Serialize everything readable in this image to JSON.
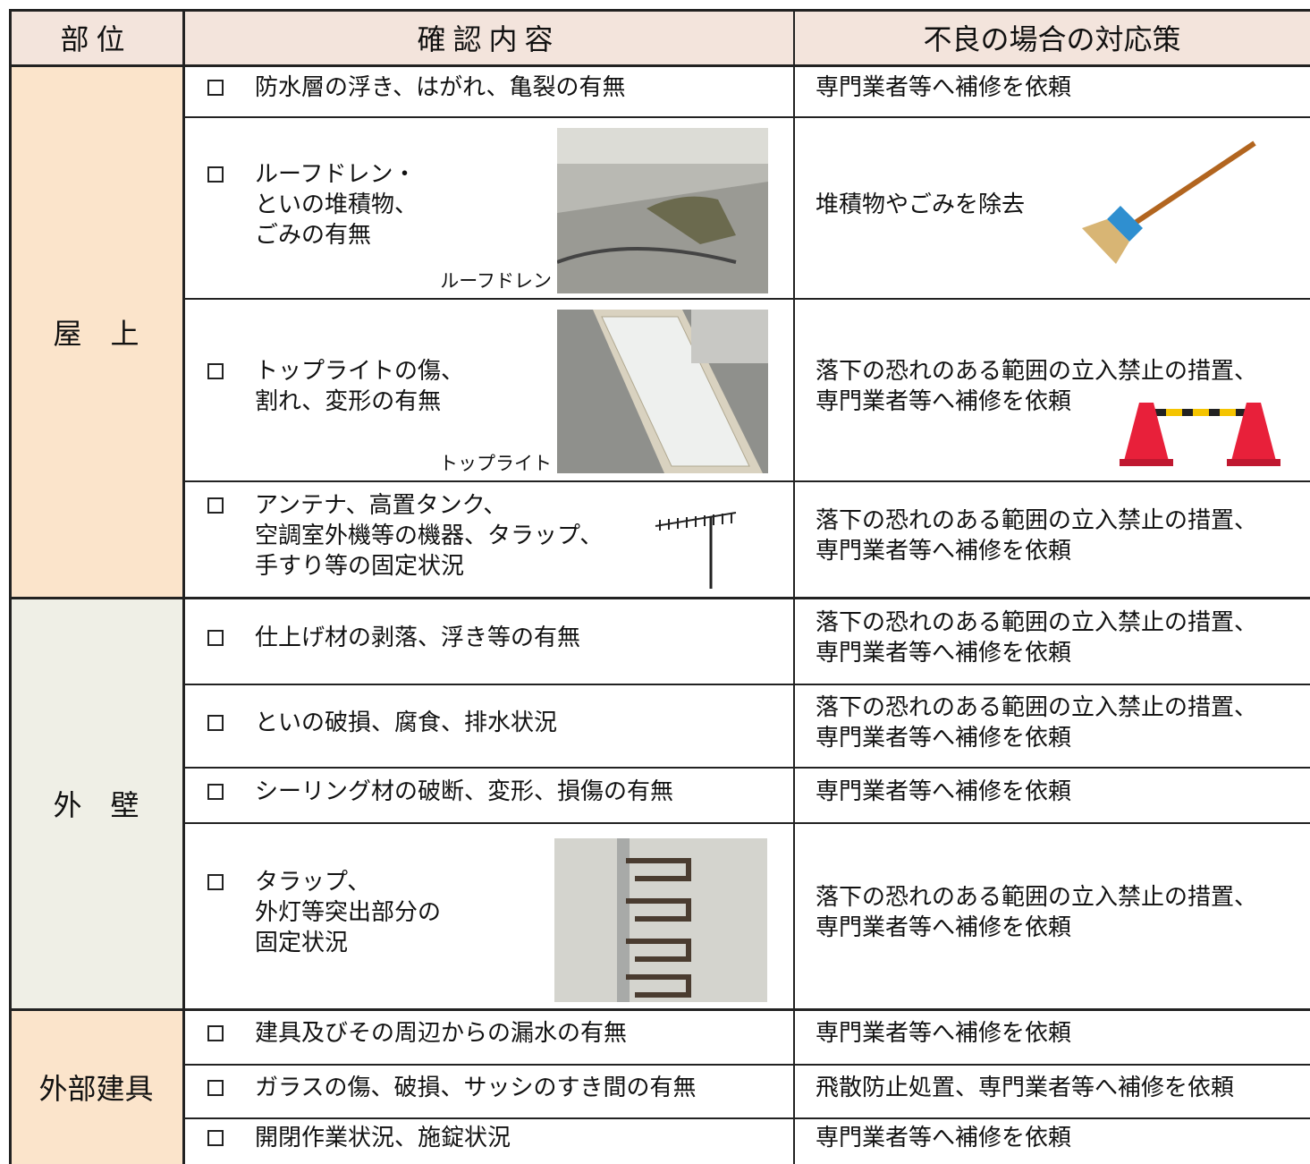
{
  "table": {
    "header": [
      "部位",
      "確認内容",
      "不良の場合の対応策"
    ],
    "sections": [
      {
        "label": "屋　上",
        "rows": [
          {
            "check": [
              "防水層の浮き、はがれ、亀裂の有無"
            ],
            "action": [
              "専門業者等へ補修を依頼"
            ]
          },
          {
            "check": [
              "ルーフドレン・",
              "といの堆積物、",
              "ごみの有無"
            ],
            "caption": "ルーフドレン",
            "action": [
              "堆積物やごみを除去"
            ]
          },
          {
            "check": [
              "トップライトの傷、",
              "割れ、変形の有無"
            ],
            "caption": "トップライト",
            "action": [
              "落下の恐れのある範囲の立入禁止の措置、",
              "専門業者等へ補修を依頼"
            ]
          },
          {
            "check": [
              "アンテナ、高置タンク、",
              "空調室外機等の機器、タラップ、",
              "手すり等の固定状況"
            ],
            "action": [
              "落下の恐れのある範囲の立入禁止の措置、",
              "専門業者等へ補修を依頼"
            ]
          }
        ]
      },
      {
        "label": "外　壁",
        "rows": [
          {
            "check": [
              "仕上げ材の剥落、浮き等の有無"
            ],
            "action": [
              "落下の恐れのある範囲の立入禁止の措置、",
              "専門業者等へ補修を依頼"
            ]
          },
          {
            "check": [
              "といの破損、腐食、排水状況"
            ],
            "action": [
              "落下の恐れのある範囲の立入禁止の措置、",
              "専門業者等へ補修を依頼"
            ]
          },
          {
            "check": [
              "シーリング材の破断、変形、損傷の有無"
            ],
            "action": [
              "専門業者等へ補修を依頼"
            ]
          },
          {
            "check": [
              "タラップ、",
              "外灯等突出部分の",
              "固定状況"
            ],
            "action": [
              "落下の恐れのある範囲の立入禁止の措置、",
              "専門業者等へ補修を依頼"
            ]
          }
        ]
      },
      {
        "label": "外部建具",
        "rows": [
          {
            "check": [
              "建具及びその周辺からの漏水の有無"
            ],
            "action": [
              "専門業者等へ補修を依頼"
            ]
          },
          {
            "check": [
              "ガラスの傷、破損、サッシのすき間の有無"
            ],
            "action": [
              "飛散防止処置、専門業者等へ補修を依頼"
            ]
          },
          {
            "check": [
              "開閉作業状況、施錠状況"
            ],
            "action": [
              "専門業者等へ補修を依頼"
            ]
          }
        ]
      }
    ]
  }
}
